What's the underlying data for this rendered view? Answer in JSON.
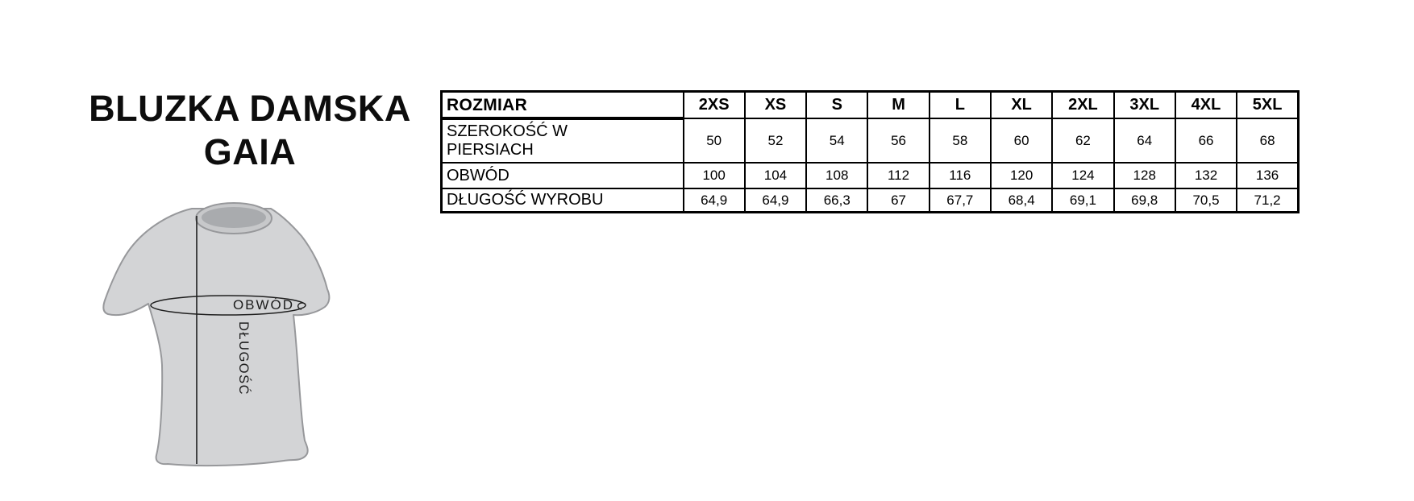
{
  "title": {
    "line1": "BLUZKA DAMSKA",
    "line2": "GAIA"
  },
  "diagram": {
    "circumference_label": "OBWÓD",
    "length_label": "DŁUGOŚĆ",
    "colors": {
      "body": "#d3d4d6",
      "outline": "#97989b",
      "collar_band": "#c7c8ca",
      "collar_inner": "#a9abae",
      "measure_line": "#1f1f1f"
    }
  },
  "table": {
    "border_color": "#000000",
    "header": {
      "label": "ROZMIAR",
      "sizes": [
        "2XS",
        "XS",
        "S",
        "M",
        "L",
        "XL",
        "2XL",
        "3XL",
        "4XL",
        "5XL"
      ]
    },
    "rows": [
      {
        "label": "SZEROKOŚĆ W\nPIERSIACH",
        "values": [
          "50",
          "52",
          "54",
          "56",
          "58",
          "60",
          "62",
          "64",
          "66",
          "68"
        ]
      },
      {
        "label": "OBWÓD",
        "values": [
          "100",
          "104",
          "108",
          "112",
          "116",
          "120",
          "124",
          "128",
          "132",
          "136"
        ]
      },
      {
        "label": "DŁUGOŚĆ WYROBU",
        "values": [
          "64,9",
          "64,9",
          "66,3",
          "67",
          "67,7",
          "68,4",
          "69,1",
          "69,8",
          "70,5",
          "71,2"
        ]
      }
    ]
  }
}
